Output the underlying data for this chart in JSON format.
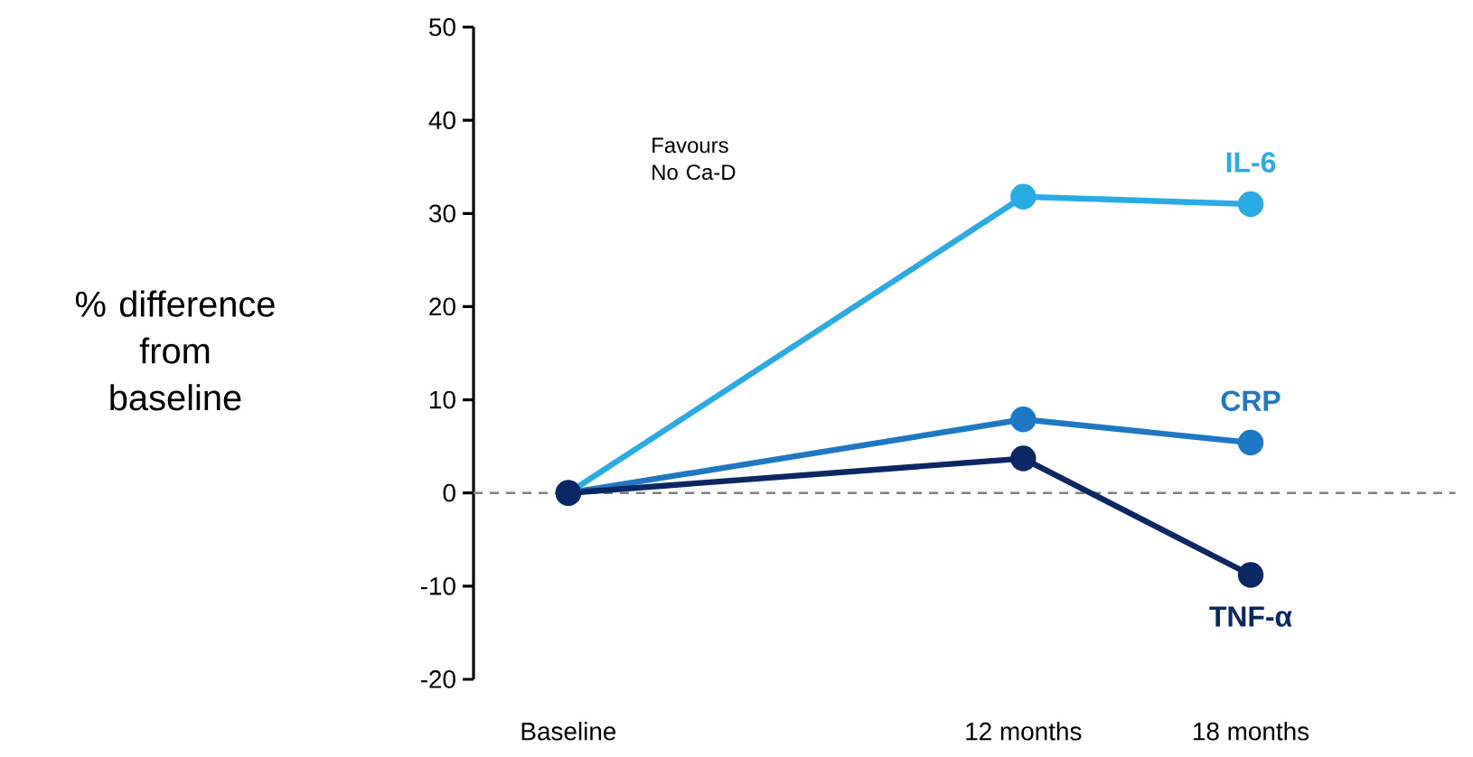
{
  "chart_data": {
    "type": "line",
    "ylabel": "% difference from baseline",
    "x": [
      0,
      12,
      18
    ],
    "xlim": [
      -2.5,
      18
    ],
    "xticks": [
      {
        "value": 0,
        "label": "Baseline"
      },
      {
        "value": 12,
        "label": "12 months"
      },
      {
        "value": 18,
        "label": "18 months"
      }
    ],
    "ylim": [
      -20,
      50
    ],
    "yticks": [
      -20,
      -10,
      0,
      10,
      20,
      30,
      40,
      50
    ],
    "series": [
      {
        "name": "IL-6",
        "color": "#29ace6",
        "values": [
          0,
          31.8,
          31.0
        ]
      },
      {
        "name": "CRP",
        "color": "#1f78c4",
        "values": [
          0,
          7.9,
          5.4
        ]
      },
      {
        "name": "TNF-α",
        "color": "#0b2766",
        "values": [
          0,
          3.7,
          -8.8
        ]
      }
    ],
    "ref_lines": [
      {
        "axis": "y",
        "value": 0,
        "color": "#808080",
        "line_style": "dashed"
      }
    ],
    "annotations": [
      "Favours No Ca-D"
    ],
    "marker": "circle",
    "line_style": "solid"
  }
}
